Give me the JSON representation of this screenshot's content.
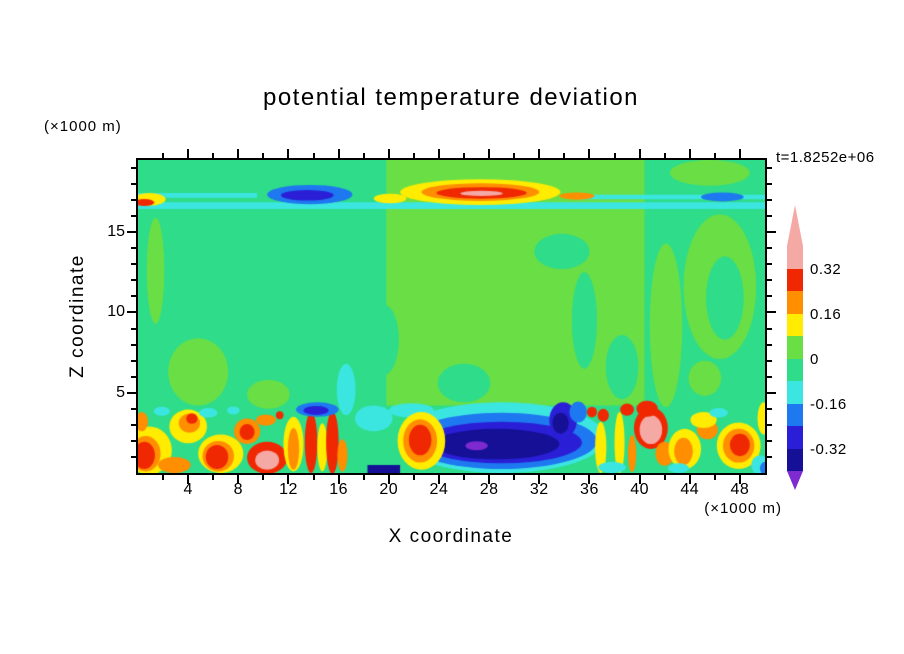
{
  "title": "potential temperature deviation",
  "time_label": "t=1.8252e+06",
  "axes": {
    "x": {
      "label": "X coordinate",
      "unit": "(×1000 m)",
      "min": 0,
      "max": 50,
      "major_ticks": [
        4,
        8,
        12,
        16,
        20,
        24,
        28,
        32,
        36,
        40,
        44,
        48
      ],
      "major_tick_labels": [
        "4",
        "8",
        "12",
        "16",
        "20",
        "24",
        "28",
        "32",
        "36",
        "40",
        "44",
        "48"
      ],
      "minor_ticks": [
        2,
        6,
        10,
        14,
        18,
        22,
        26,
        30,
        34,
        38,
        42,
        46
      ]
    },
    "z": {
      "label": "Z coordinate",
      "unit": "(×1000 m)",
      "min": 0,
      "max": 19.5,
      "major_ticks": [
        5,
        10,
        15
      ],
      "major_tick_labels": [
        "5",
        "10",
        "15"
      ],
      "minor_ticks": [
        1,
        2,
        3,
        4,
        6,
        7,
        8,
        9,
        11,
        12,
        13,
        14,
        16,
        17,
        18,
        19
      ]
    }
  },
  "colorbar": {
    "labels": [
      "0.32",
      "0.16",
      "0",
      "-0.16",
      "-0.32"
    ],
    "bands_top_to_bottom": [
      "pink",
      "red",
      "orange",
      "yellow",
      "ygreen",
      "gspring",
      "cyan",
      "blue",
      "dblue",
      "navy"
    ],
    "arrow_top": "pink",
    "arrow_bottom": "purple"
  },
  "chart_data": {
    "type": "heatmap",
    "title": "potential temperature deviation",
    "xlabel": "X coordinate (×1000 m)",
    "ylabel": "Z coordinate (×1000 m)",
    "time_annotation": "t=1.8252e+06",
    "x_range": [
      0,
      50
    ],
    "z_range": [
      0,
      19.5
    ],
    "contour_levels": [
      -0.4,
      -0.32,
      -0.24,
      -0.16,
      -0.08,
      0,
      0.08,
      0.16,
      0.24,
      0.32,
      0.4
    ],
    "band_ranges": {
      "pink": "> 0.32",
      "red": "0.24 to 0.32",
      "orange": "0.16 to 0.24",
      "yellow": "0.08 to 0.16",
      "ygreen": "0 to 0.08",
      "gspring": "-0.08 to 0",
      "cyan": "-0.16 to -0.08",
      "blue": "-0.24 to -0.16",
      "dblue": "-0.32 to -0.24",
      "navy": "-0.40 to -0.32",
      "purple": "< -0.40"
    },
    "palette": {
      "pink": "#F5A9A4",
      "red": "#F02802",
      "orange": "#FF8E00",
      "yellow": "#FFEC00",
      "ygreen": "#6ADF45",
      "gspring": "#2EDC8A",
      "cyan": "#3CE6E0",
      "blue": "#1E78F0",
      "dblue": "#2A1FD6",
      "navy": "#151095",
      "purple": "#7D2AD0"
    },
    "background": "gspring",
    "features": [
      {
        "s": "r",
        "c": "ygreen",
        "x": 19.8,
        "z": 4.2,
        "w": 20.6,
        "h": 15.3
      },
      {
        "s": "e",
        "c": "gspring",
        "x": 19.6,
        "z": 8.3,
        "rx": 1.2,
        "rz": 2.2
      },
      {
        "s": "e",
        "c": "gspring",
        "x": 35.6,
        "z": 9.5,
        "rx": 1.0,
        "rz": 3.0
      },
      {
        "s": "e",
        "c": "gspring",
        "x": 33.8,
        "z": 13.8,
        "rx": 2.2,
        "rz": 1.1
      },
      {
        "s": "e",
        "c": "gspring",
        "x": 38.6,
        "z": 6.6,
        "rx": 1.3,
        "rz": 2.0
      },
      {
        "s": "e",
        "c": "gspring",
        "x": 26.0,
        "z": 5.6,
        "rx": 2.1,
        "rz": 1.2
      },
      {
        "s": "e",
        "c": "ygreen",
        "x": 42.1,
        "z": 9.2,
        "rx": 1.3,
        "rz": 5.1
      },
      {
        "s": "e",
        "c": "ygreen",
        "x": 46.4,
        "z": 11.6,
        "rx": 2.9,
        "rz": 4.5
      },
      {
        "s": "e",
        "c": "gspring",
        "x": 46.8,
        "z": 10.9,
        "rx": 1.5,
        "rz": 2.6
      },
      {
        "s": "e",
        "c": "ygreen",
        "x": 45.2,
        "z": 5.9,
        "rx": 1.3,
        "rz": 1.1
      },
      {
        "s": "e",
        "c": "ygreen",
        "x": 4.8,
        "z": 6.3,
        "rx": 2.4,
        "rz": 2.1
      },
      {
        "s": "e",
        "c": "ygreen",
        "x": 10.4,
        "z": 4.9,
        "rx": 1.7,
        "rz": 0.9
      },
      {
        "s": "e",
        "c": "ygreen",
        "x": 1.4,
        "z": 12.6,
        "rx": 0.7,
        "rz": 3.3
      },
      {
        "s": "e",
        "c": "ygreen",
        "x": 45.6,
        "z": 18.7,
        "rx": 3.2,
        "rz": 0.8
      },
      {
        "s": "r",
        "c": "cyan",
        "x": 0,
        "z": 16.45,
        "w": 50,
        "h": 0.42
      },
      {
        "s": "r",
        "c": "cyan",
        "x": 0,
        "z": 17.15,
        "w": 9.5,
        "h": 0.3
      },
      {
        "s": "r",
        "c": "cyan",
        "x": 35,
        "z": 17.05,
        "w": 15,
        "h": 0.28
      },
      {
        "s": "e",
        "c": "blue",
        "x": 13.7,
        "z": 17.35,
        "rx": 3.4,
        "rz": 0.6
      },
      {
        "s": "e",
        "c": "dblue",
        "x": 13.5,
        "z": 17.3,
        "rx": 2.1,
        "rz": 0.33
      },
      {
        "s": "e",
        "c": "yellow",
        "x": 27.3,
        "z": 17.5,
        "rx": 6.4,
        "rz": 0.8
      },
      {
        "s": "e",
        "c": "orange",
        "x": 27.3,
        "z": 17.5,
        "rx": 4.7,
        "rz": 0.55
      },
      {
        "s": "e",
        "c": "red",
        "x": 27.4,
        "z": 17.45,
        "rx": 3.6,
        "rz": 0.36
      },
      {
        "s": "e",
        "c": "pink",
        "x": 27.4,
        "z": 17.42,
        "rx": 1.7,
        "rz": 0.17
      },
      {
        "s": "e",
        "c": "orange",
        "x": 35.0,
        "z": 17.25,
        "rx": 1.4,
        "rz": 0.22
      },
      {
        "s": "e",
        "c": "yellow",
        "x": 20.1,
        "z": 17.1,
        "rx": 1.3,
        "rz": 0.3
      },
      {
        "s": "e",
        "c": "yellow",
        "x": 0.9,
        "z": 17.05,
        "rx": 1.3,
        "rz": 0.4
      },
      {
        "s": "e",
        "c": "red",
        "x": 0.5,
        "z": 16.85,
        "rx": 0.8,
        "rz": 0.22
      },
      {
        "s": "e",
        "c": "blue",
        "x": 46.6,
        "z": 17.2,
        "rx": 1.7,
        "rz": 0.28
      },
      {
        "s": "e",
        "c": "cyan",
        "x": 29.0,
        "z": 2.2,
        "rx": 8.3,
        "rz": 2.2
      },
      {
        "s": "e",
        "c": "blue",
        "x": 29.0,
        "z": 2.0,
        "rx": 7.6,
        "rz": 1.75
      },
      {
        "s": "e",
        "c": "dblue",
        "x": 29.0,
        "z": 1.9,
        "rx": 6.4,
        "rz": 1.3
      },
      {
        "s": "e",
        "c": "navy",
        "x": 28.6,
        "z": 1.8,
        "rx": 5.0,
        "rz": 0.95
      },
      {
        "s": "e",
        "c": "purple",
        "x": 27.0,
        "z": 1.7,
        "rx": 0.9,
        "rz": 0.28
      },
      {
        "s": "e",
        "c": "dblue",
        "x": 33.9,
        "z": 3.3,
        "rx": 1.1,
        "rz": 1.1
      },
      {
        "s": "e",
        "c": "navy",
        "x": 33.7,
        "z": 3.1,
        "rx": 0.65,
        "rz": 0.65
      },
      {
        "s": "e",
        "c": "blue",
        "x": 35.1,
        "z": 3.8,
        "rx": 0.7,
        "rz": 0.65
      },
      {
        "s": "e",
        "c": "cyan",
        "x": 21.8,
        "z": 3.9,
        "rx": 1.8,
        "rz": 0.45
      },
      {
        "s": "e",
        "c": "cyan",
        "x": 18.8,
        "z": 3.4,
        "rx": 1.5,
        "rz": 0.8
      },
      {
        "s": "e",
        "c": "cyan",
        "x": 16.6,
        "z": 5.2,
        "rx": 0.75,
        "rz": 1.6
      },
      {
        "s": "r",
        "c": "navy",
        "x": 18.3,
        "z": 0,
        "w": 2.6,
        "h": 0.5
      },
      {
        "s": "e",
        "c": "yellow",
        "x": 0.9,
        "z": 1.4,
        "rx": 1.8,
        "rz": 1.5
      },
      {
        "s": "e",
        "c": "orange",
        "x": 0.6,
        "z": 1.2,
        "rx": 1.2,
        "rz": 1.1
      },
      {
        "s": "e",
        "c": "red",
        "x": 0.5,
        "z": 1.1,
        "rx": 0.85,
        "rz": 0.85
      },
      {
        "s": "e",
        "c": "orange",
        "x": 2.9,
        "z": 0.5,
        "rx": 1.3,
        "rz": 0.5
      },
      {
        "s": "e",
        "c": "yellow",
        "x": 4.0,
        "z": 2.9,
        "rx": 1.5,
        "rz": 1.05
      },
      {
        "s": "e",
        "c": "orange",
        "x": 4.1,
        "z": 3.1,
        "rx": 0.85,
        "rz": 0.6
      },
      {
        "s": "e",
        "c": "red",
        "x": 4.3,
        "z": 3.4,
        "rx": 0.45,
        "rz": 0.33
      },
      {
        "s": "e",
        "c": "cyan",
        "x": 5.6,
        "z": 3.75,
        "rx": 0.75,
        "rz": 0.3
      },
      {
        "s": "e",
        "c": "yellow",
        "x": 6.6,
        "z": 1.2,
        "rx": 1.8,
        "rz": 1.2
      },
      {
        "s": "e",
        "c": "orange",
        "x": 6.4,
        "z": 1.05,
        "rx": 1.25,
        "rz": 0.95
      },
      {
        "s": "e",
        "c": "red",
        "x": 6.3,
        "z": 1.0,
        "rx": 0.9,
        "rz": 0.75
      },
      {
        "s": "e",
        "c": "cyan",
        "x": 7.6,
        "z": 3.9,
        "rx": 0.5,
        "rz": 0.25
      },
      {
        "s": "e",
        "c": "orange",
        "x": 8.7,
        "z": 2.6,
        "rx": 1.05,
        "rz": 0.8
      },
      {
        "s": "e",
        "c": "red",
        "x": 8.7,
        "z": 2.55,
        "rx": 0.6,
        "rz": 0.5
      },
      {
        "s": "e",
        "c": "red",
        "x": 10.3,
        "z": 0.95,
        "rx": 1.6,
        "rz": 1.0
      },
      {
        "s": "e",
        "c": "pink",
        "x": 10.3,
        "z": 0.8,
        "rx": 0.95,
        "rz": 0.6
      },
      {
        "s": "e",
        "c": "orange",
        "x": 10.2,
        "z": 3.3,
        "rx": 0.8,
        "rz": 0.35
      },
      {
        "s": "e",
        "c": "red",
        "x": 11.3,
        "z": 3.6,
        "rx": 0.3,
        "rz": 0.25
      },
      {
        "s": "e",
        "c": "yellow",
        "x": 12.4,
        "z": 1.8,
        "rx": 0.8,
        "rz": 1.7
      },
      {
        "s": "e",
        "c": "orange",
        "x": 12.4,
        "z": 1.5,
        "rx": 0.45,
        "rz": 1.3
      },
      {
        "s": "e",
        "c": "red",
        "x": 13.8,
        "z": 1.9,
        "rx": 0.5,
        "rz": 1.9
      },
      {
        "s": "e",
        "c": "yellow",
        "x": 14.7,
        "z": 1.6,
        "rx": 0.4,
        "rz": 1.5
      },
      {
        "s": "e",
        "c": "red",
        "x": 15.5,
        "z": 1.9,
        "rx": 0.5,
        "rz": 1.95
      },
      {
        "s": "e",
        "c": "orange",
        "x": 16.3,
        "z": 1.1,
        "rx": 0.4,
        "rz": 1.0
      },
      {
        "s": "e",
        "c": "blue",
        "x": 14.3,
        "z": 3.95,
        "rx": 1.7,
        "rz": 0.45
      },
      {
        "s": "e",
        "c": "dblue",
        "x": 14.2,
        "z": 3.9,
        "rx": 1.0,
        "rz": 0.28
      },
      {
        "s": "e",
        "c": "yellow",
        "x": 22.6,
        "z": 2.0,
        "rx": 1.9,
        "rz": 1.8
      },
      {
        "s": "e",
        "c": "orange",
        "x": 22.5,
        "z": 2.0,
        "rx": 1.35,
        "rz": 1.35
      },
      {
        "s": "e",
        "c": "red",
        "x": 22.5,
        "z": 2.05,
        "rx": 0.9,
        "rz": 0.95
      },
      {
        "s": "e",
        "c": "yellow",
        "x": 36.9,
        "z": 1.6,
        "rx": 0.45,
        "rz": 1.6
      },
      {
        "s": "e",
        "c": "yellow",
        "x": 38.4,
        "z": 1.9,
        "rx": 0.4,
        "rz": 1.9
      },
      {
        "s": "e",
        "c": "orange",
        "x": 39.4,
        "z": 1.2,
        "rx": 0.33,
        "rz": 1.15
      },
      {
        "s": "e",
        "c": "red",
        "x": 36.2,
        "z": 3.8,
        "rx": 0.4,
        "rz": 0.33
      },
      {
        "s": "e",
        "c": "red",
        "x": 37.1,
        "z": 3.6,
        "rx": 0.45,
        "rz": 0.4
      },
      {
        "s": "e",
        "c": "red",
        "x": 39.0,
        "z": 3.95,
        "rx": 0.55,
        "rz": 0.38
      },
      {
        "s": "e",
        "c": "cyan",
        "x": 37.8,
        "z": 0.35,
        "rx": 1.1,
        "rz": 0.35
      },
      {
        "s": "e",
        "c": "red",
        "x": 40.9,
        "z": 2.8,
        "rx": 1.35,
        "rz": 1.3
      },
      {
        "s": "e",
        "c": "pink",
        "x": 40.9,
        "z": 2.7,
        "rx": 0.9,
        "rz": 0.9
      },
      {
        "s": "e",
        "c": "red",
        "x": 40.6,
        "z": 4.0,
        "rx": 0.85,
        "rz": 0.5
      },
      {
        "s": "e",
        "c": "orange",
        "x": 42.0,
        "z": 1.2,
        "rx": 0.75,
        "rz": 0.75
      },
      {
        "s": "e",
        "c": "yellow",
        "x": 43.6,
        "z": 1.5,
        "rx": 1.3,
        "rz": 1.25
      },
      {
        "s": "e",
        "c": "orange",
        "x": 43.5,
        "z": 1.35,
        "rx": 0.75,
        "rz": 0.85
      },
      {
        "s": "e",
        "c": "cyan",
        "x": 43.1,
        "z": 0.3,
        "rx": 0.85,
        "rz": 0.3
      },
      {
        "s": "e",
        "c": "orange",
        "x": 45.4,
        "z": 2.7,
        "rx": 0.85,
        "rz": 0.6
      },
      {
        "s": "e",
        "c": "yellow",
        "x": 45.1,
        "z": 3.3,
        "rx": 1.05,
        "rz": 0.5
      },
      {
        "s": "e",
        "c": "cyan",
        "x": 46.3,
        "z": 3.75,
        "rx": 0.75,
        "rz": 0.3
      },
      {
        "s": "e",
        "c": "yellow",
        "x": 47.9,
        "z": 1.7,
        "rx": 1.75,
        "rz": 1.45
      },
      {
        "s": "e",
        "c": "orange",
        "x": 47.9,
        "z": 1.7,
        "rx": 1.25,
        "rz": 1.05
      },
      {
        "s": "e",
        "c": "red",
        "x": 48.0,
        "z": 1.75,
        "rx": 0.8,
        "rz": 0.7
      },
      {
        "s": "e",
        "c": "yellow",
        "x": 49.9,
        "z": 3.4,
        "rx": 0.5,
        "rz": 1.0
      },
      {
        "s": "e",
        "c": "cyan",
        "x": 49.6,
        "z": 0.5,
        "rx": 0.7,
        "rz": 0.6
      },
      {
        "s": "e",
        "c": "blue",
        "x": 50.0,
        "z": 0.3,
        "rx": 0.4,
        "rz": 0.4
      },
      {
        "s": "e",
        "c": "orange",
        "x": 0.3,
        "z": 3.2,
        "rx": 0.5,
        "rz": 0.6
      },
      {
        "s": "e",
        "c": "cyan",
        "x": 1.9,
        "z": 3.85,
        "rx": 0.65,
        "rz": 0.28
      }
    ]
  }
}
